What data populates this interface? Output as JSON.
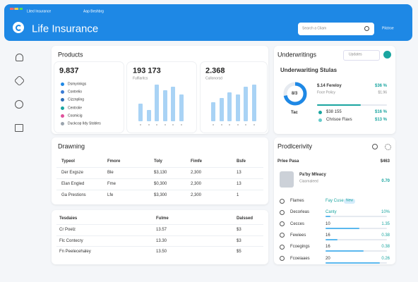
{
  "header": {
    "tabs": [
      "Lited Insurance",
      "Aap Beshbrg"
    ],
    "title": "Life Insurance",
    "search_placeholder": "Search a Cliam",
    "user": "Pilctroe"
  },
  "products": {
    "title": "Products",
    "cards": [
      {
        "value": "9.837",
        "legend": [
          "Dsmyrinkgs",
          "Contrelio",
          "Cizznpling",
          "Centrolie",
          "Cosmicig",
          "Duckcop Ildy Stobles"
        ]
      },
      {
        "value": "193 173",
        "subtitle": "Fulfiaritcs",
        "bars": [
          45,
          30,
          95,
          80,
          90,
          70
        ]
      },
      {
        "value": "2.368",
        "subtitle": "Cullonorsd",
        "bars": [
          50,
          60,
          75,
          70,
          90,
          95
        ]
      }
    ]
  },
  "underwriting": {
    "title": "Underwritings",
    "filter": "Updates",
    "subtitle": "Underwariting Stulas",
    "donut": {
      "center": "8/3",
      "value": 72,
      "label": "Tac"
    },
    "rows": [
      {
        "label": "$.14 Fereloy",
        "value": "$36 %"
      },
      {
        "label": "Foce Policy",
        "value": "$1.96"
      },
      {
        "label": "$38 155",
        "value": "$16 %"
      },
      {
        "label": "Chrisoe Flavs",
        "value": "$13 %"
      }
    ]
  },
  "drawing": {
    "title": "Drawning",
    "columns": [
      "Typeol",
      "Fmore",
      "Toly",
      "Fimfe",
      "Bsfe"
    ],
    "rows": [
      [
        "Der Exgsze",
        "Ble",
        "$3,130",
        "2,300",
        "13"
      ],
      [
        "Elan Engled",
        "Fme",
        "$0,300",
        "2,300",
        "13"
      ],
      [
        "Ga Prestions",
        "Lfe",
        "$3,300",
        "2,300",
        "1"
      ]
    ]
  },
  "summary": {
    "columns": [
      "Tesdaies",
      "Fulme",
      "Dalssed"
    ],
    "rows": [
      [
        "Cr Poelz",
        "13.57",
        "$3"
      ],
      [
        "Flc Contecry",
        "13.30",
        "$3"
      ],
      [
        "Fn Peelecehaley",
        "13.50",
        "$5"
      ]
    ]
  },
  "productivity": {
    "title": "Prodlcerivity",
    "total_label": "Prlee Pasa",
    "total": "$463",
    "agent": {
      "name": "Pa'by Mfeacy",
      "sub": "Ciaomaleed",
      "value": "0.70"
    },
    "list": [
      {
        "label": "Flames",
        "mid": "Fay Cuse",
        "badge": "New"
      },
      {
        "label": "Decorleas",
        "mid": "Canty",
        "value": "10%",
        "progress": 8
      },
      {
        "label": "Cecces",
        "mid": "10",
        "value": "1.35",
        "progress": 55
      },
      {
        "label": "Fewiees",
        "mid": "16",
        "value": "0.38",
        "progress": 20
      },
      {
        "label": "Fcoegings",
        "mid": "16",
        "value": "0.38",
        "progress": 62
      },
      {
        "label": "Fcoeiaaes",
        "mid": "20",
        "value": "0.26",
        "progress": 88
      }
    ]
  }
}
